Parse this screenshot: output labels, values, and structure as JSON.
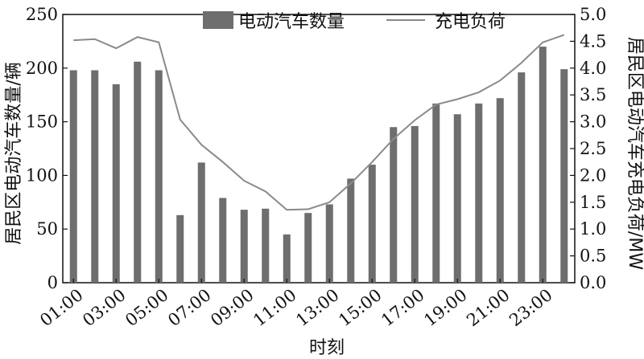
{
  "chart_data": {
    "type": "bar",
    "xlabel": "时刻",
    "ylabel": "居民区电动汽车数量/辆",
    "y2label": "居民区电动汽车充电负荷/MW",
    "legend_position": "top-center",
    "grid": false,
    "ylim": [
      0,
      250
    ],
    "y2lim": [
      0,
      5.0
    ],
    "yticks": [
      "0",
      "50",
      "100",
      "150",
      "200",
      "250"
    ],
    "y2ticks": [
      "0.0",
      "0.5",
      "1.0",
      "1.5",
      "2.0",
      "2.5",
      "3.0",
      "3.5",
      "4.0",
      "4.5",
      "5.0"
    ],
    "xtick_labels": [
      "01:00",
      "03:00",
      "05:00",
      "07:00",
      "09:00",
      "11:00",
      "13:00",
      "15:00",
      "17:00",
      "19:00",
      "21:00",
      "23:00"
    ],
    "categories": [
      "01:00",
      "02:00",
      "03:00",
      "04:00",
      "05:00",
      "06:00",
      "07:00",
      "08:00",
      "09:00",
      "10:00",
      "11:00",
      "12:00",
      "13:00",
      "14:00",
      "15:00",
      "16:00",
      "17:00",
      "18:00",
      "19:00",
      "20:00",
      "21:00",
      "22:00",
      "23:00",
      "24:00"
    ],
    "series": [
      {
        "name": "电动汽车数量",
        "type": "bar",
        "axis": "left",
        "color": "#6e6e6e",
        "values": [
          198,
          198,
          185,
          206,
          198,
          63,
          112,
          79,
          68,
          69,
          45,
          65,
          73,
          97,
          110,
          145,
          146,
          167,
          157,
          167,
          172,
          196,
          220,
          199
        ]
      },
      {
        "name": "充电负荷",
        "type": "line",
        "axis": "right",
        "color": "#8a8a8a",
        "values": [
          4.52,
          4.54,
          4.37,
          4.58,
          4.48,
          3.04,
          2.57,
          2.25,
          1.9,
          1.7,
          1.36,
          1.37,
          1.5,
          1.85,
          2.25,
          2.68,
          3.03,
          3.32,
          3.42,
          3.55,
          3.77,
          4.1,
          4.48,
          4.62
        ]
      }
    ]
  }
}
